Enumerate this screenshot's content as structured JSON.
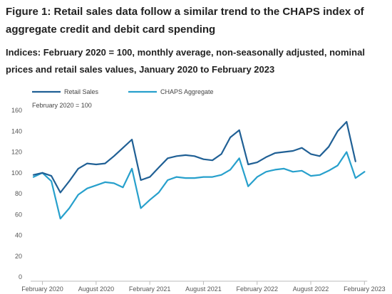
{
  "figure": {
    "title": "Figure 1: Retail sales data follow a similar trend to the CHAPS index of aggregate credit and debit card spending",
    "subtitle": "Indices: February 2020 = 100, monthly average, non-seasonally adjusted, nominal prices and retail sales values, January 2020 to February 2023"
  },
  "chart_data": {
    "type": "line",
    "title": "Figure 1: Retail sales data follow a similar trend to the CHAPS index of aggregate credit and debit card spending",
    "subtitle": "Indices: February 2020 = 100, monthly average, non-seasonally adjusted, nominal prices and retail sales values, January 2020 to February 2023",
    "annotation": "February 2020 = 100",
    "xlabel": "",
    "ylabel": "",
    "ylim": [
      0,
      160
    ],
    "yticks": [
      0,
      20,
      40,
      60,
      80,
      100,
      120,
      140,
      160
    ],
    "grid": false,
    "legend_position": "top-left",
    "x": [
      "2020-01",
      "2020-02",
      "2020-03",
      "2020-04",
      "2020-05",
      "2020-06",
      "2020-07",
      "2020-08",
      "2020-09",
      "2020-10",
      "2020-11",
      "2020-12",
      "2021-01",
      "2021-02",
      "2021-03",
      "2021-04",
      "2021-05",
      "2021-06",
      "2021-07",
      "2021-08",
      "2021-09",
      "2021-10",
      "2021-11",
      "2021-12",
      "2022-01",
      "2022-02",
      "2022-03",
      "2022-04",
      "2022-05",
      "2022-06",
      "2022-07",
      "2022-08",
      "2022-09",
      "2022-10",
      "2022-11",
      "2022-12",
      "2023-01",
      "2023-02"
    ],
    "xtick_labels": [
      {
        "x": "2020-02",
        "label": "February 2020"
      },
      {
        "x": "2020-08",
        "label": "August 2020"
      },
      {
        "x": "2021-02",
        "label": "February 2021"
      },
      {
        "x": "2021-08",
        "label": "August 2021"
      },
      {
        "x": "2022-02",
        "label": "February 2022"
      },
      {
        "x": "2022-08",
        "label": "August 2022"
      },
      {
        "x": "2023-02",
        "label": "February 2023"
      }
    ],
    "series": [
      {
        "name": "Retail Sales",
        "color": "#206095",
        "values": [
          98,
          100,
          97,
          81,
          92,
          104,
          109,
          108,
          109,
          116,
          124,
          132,
          93,
          96,
          105,
          114,
          116,
          117,
          116,
          113,
          112,
          118,
          134,
          141,
          108,
          110,
          115,
          119,
          120,
          121,
          124,
          118,
          116,
          125,
          140,
          149,
          111,
          null
        ]
      },
      {
        "name": "CHAPS Aggregate",
        "color": "#27a0cc",
        "values": [
          96,
          100,
          92,
          56,
          66,
          79,
          85,
          88,
          91,
          90,
          86,
          104,
          66,
          74,
          81,
          93,
          96,
          95,
          95,
          96,
          96,
          98,
          103,
          114,
          87,
          96,
          101,
          103,
          104,
          101,
          102,
          97,
          98,
          102,
          107,
          120,
          95,
          101
        ]
      }
    ]
  }
}
